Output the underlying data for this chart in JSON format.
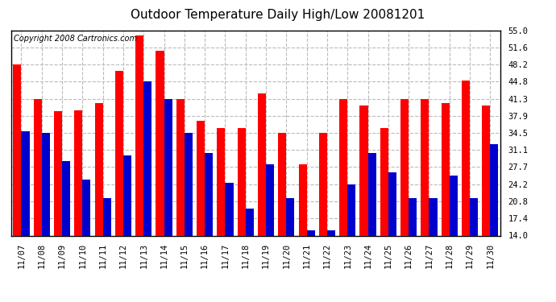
{
  "title": "Outdoor Temperature Daily High/Low 20081201",
  "copyright_text": "Copyright 2008 Cartronics.com",
  "dates": [
    "11/07",
    "11/08",
    "11/09",
    "11/10",
    "11/11",
    "11/12",
    "11/13",
    "11/14",
    "11/15",
    "11/16",
    "11/17",
    "11/18",
    "11/19",
    "11/20",
    "11/21",
    "11/22",
    "11/23",
    "11/24",
    "11/25",
    "11/26",
    "11/27",
    "11/28",
    "11/29",
    "11/30"
  ],
  "highs": [
    48.2,
    41.3,
    38.8,
    39.0,
    40.5,
    46.9,
    54.0,
    50.9,
    41.3,
    36.9,
    35.5,
    35.5,
    42.3,
    34.5,
    28.2,
    34.5,
    41.3,
    39.9,
    35.5,
    41.3,
    41.3,
    40.5,
    45.0,
    39.9
  ],
  "lows": [
    34.9,
    34.5,
    28.8,
    25.2,
    21.5,
    30.0,
    44.8,
    41.3,
    34.5,
    30.5,
    24.5,
    19.4,
    28.2,
    21.5,
    15.0,
    15.0,
    24.2,
    30.5,
    26.6,
    21.5,
    21.5,
    26.0,
    21.5,
    32.2
  ],
  "high_color": "#ff0000",
  "low_color": "#0000cc",
  "bg_color": "#ffffff",
  "plot_bg_color": "#ffffff",
  "grid_color": "#bbbbbb",
  "ymin": 14.0,
  "ymax": 55.0,
  "yticks": [
    14.0,
    17.4,
    20.8,
    24.2,
    27.7,
    31.1,
    34.5,
    37.9,
    41.3,
    44.8,
    48.2,
    51.6,
    55.0
  ],
  "title_fontsize": 11,
  "copyright_fontsize": 7,
  "bar_width": 0.4
}
